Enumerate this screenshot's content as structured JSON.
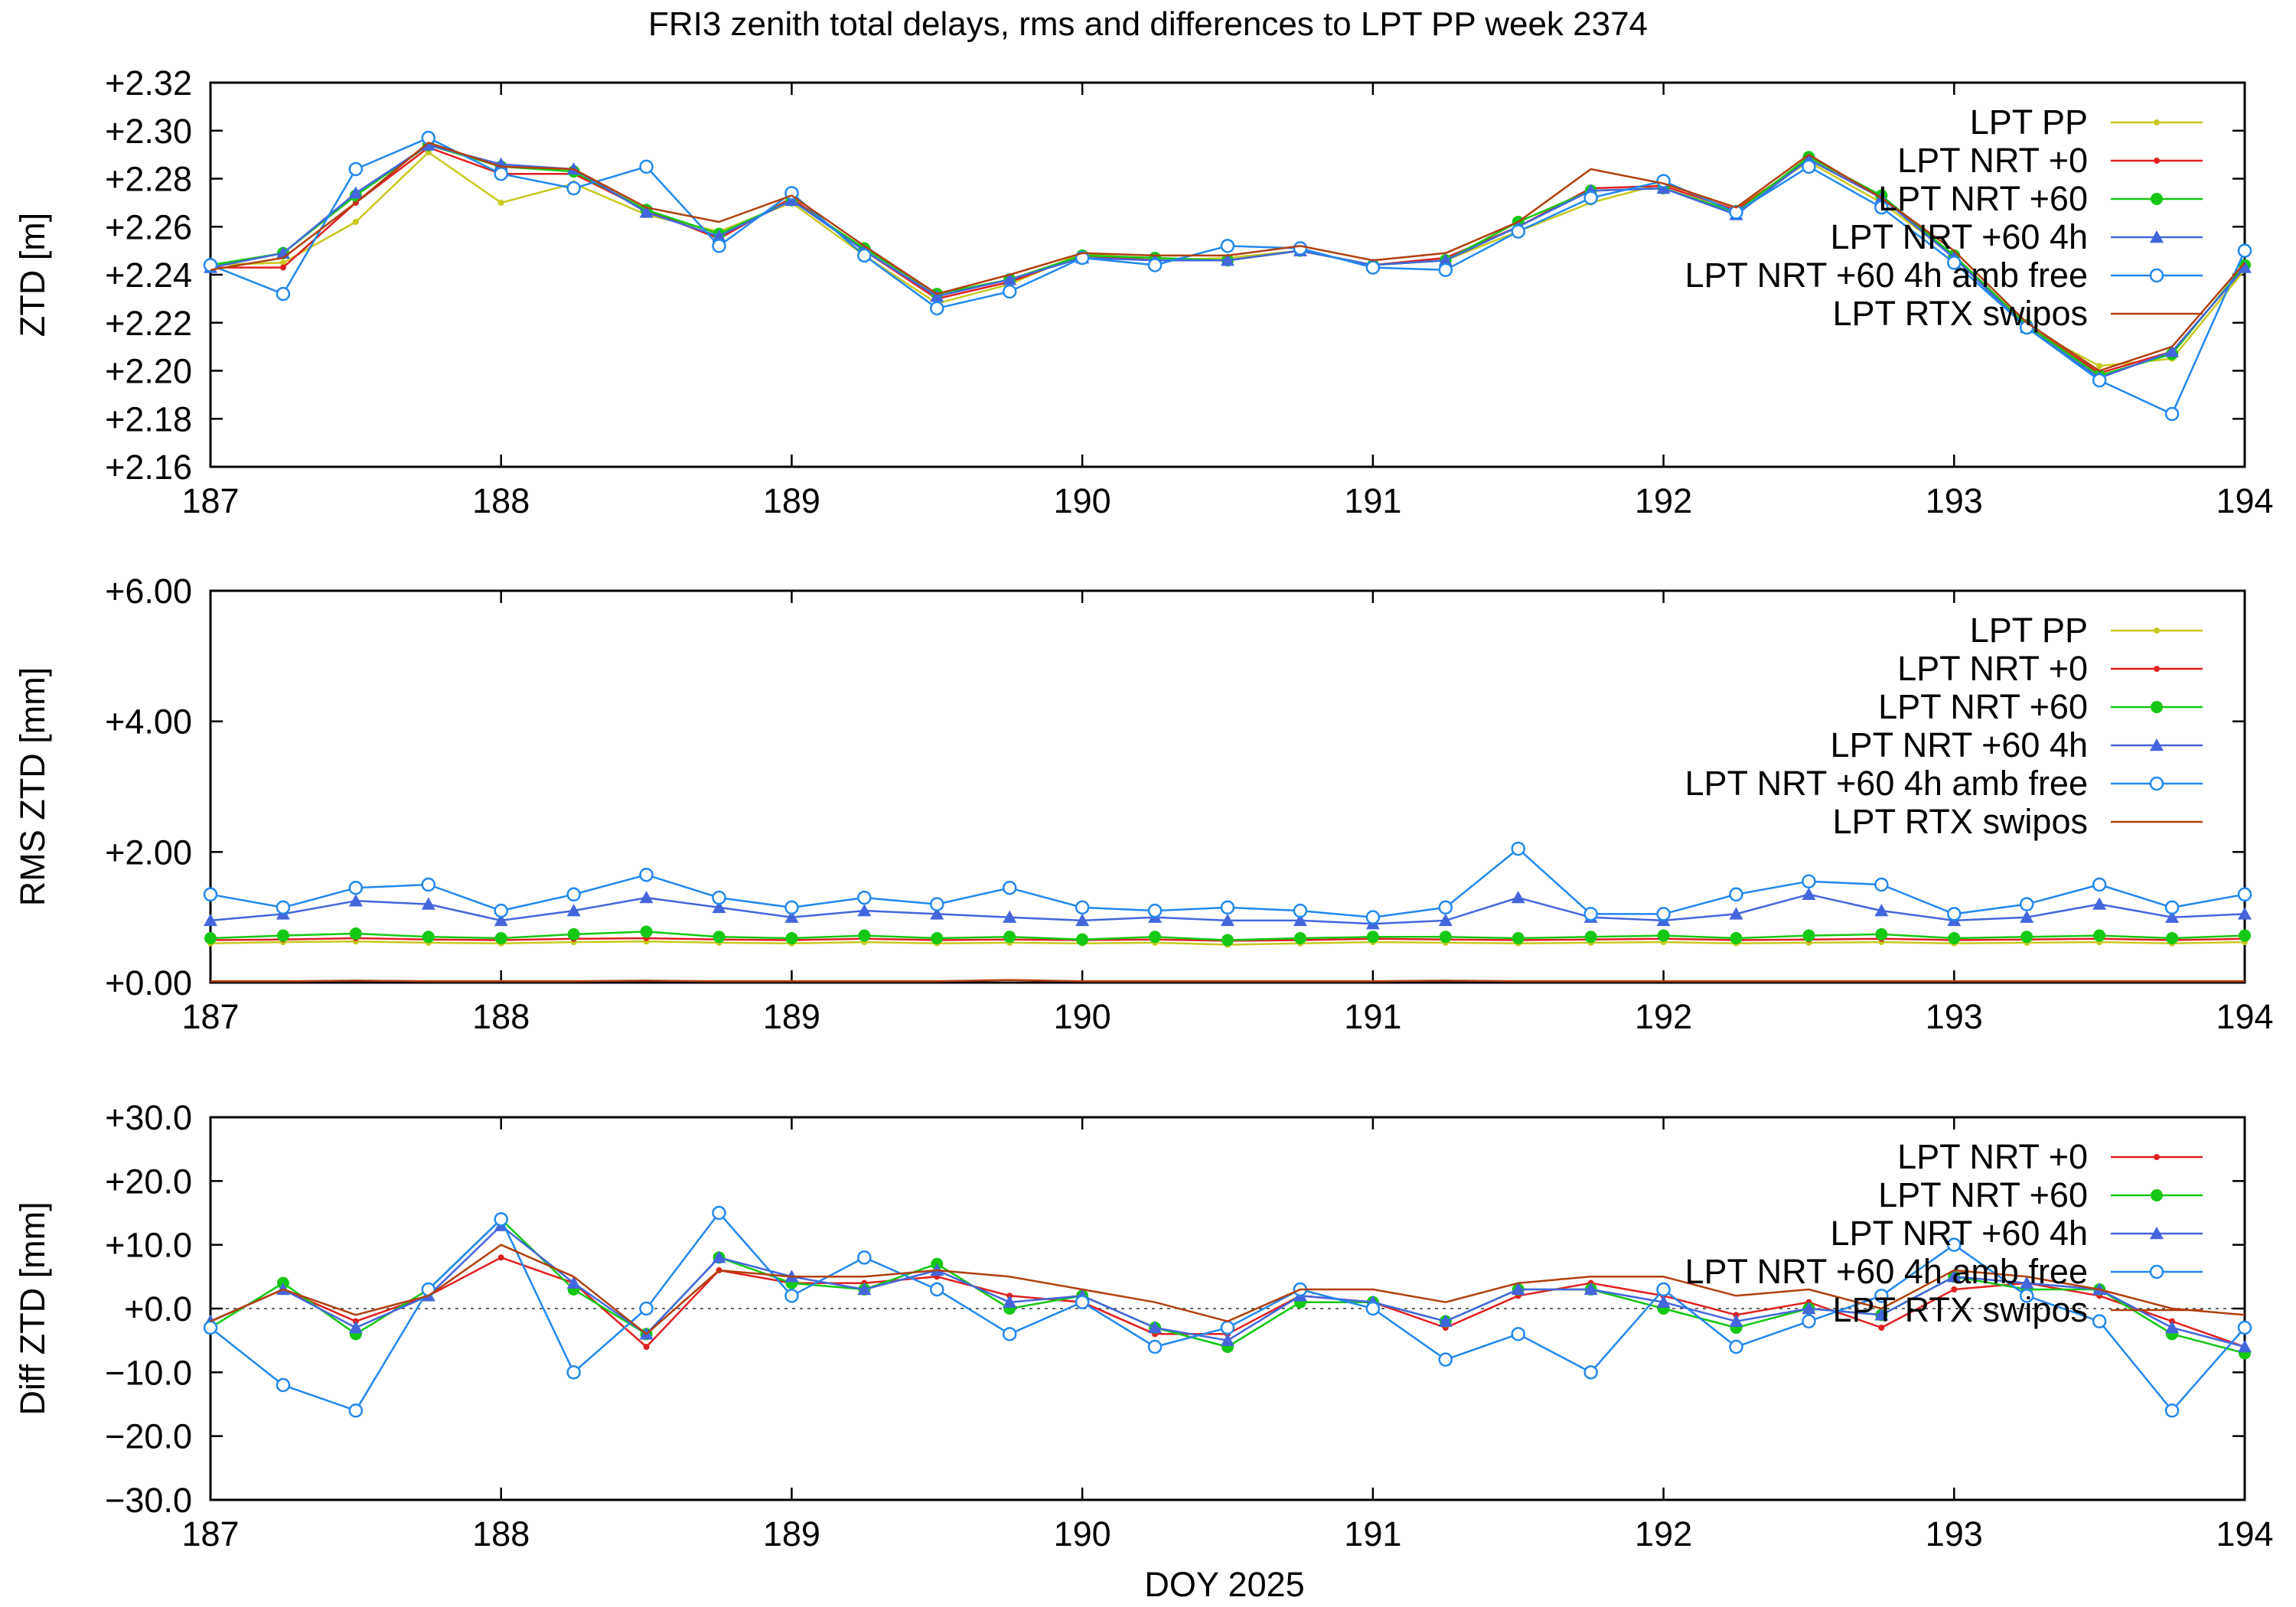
{
  "title": "FRI3 zenith total delays, rms and differences to LPT PP week 2374",
  "xlabel": "DOY 2025",
  "colors": {
    "LPT PP": "#c8c81e",
    "LPT NRT +0": "#e02020",
    "LPT NRT +60": "#14c814",
    "LPT NRT +60 4h": "#4466dd",
    "LPT NRT +60 4h amb free": "#2288ee",
    "LPT RTX swipos": "#b0400e"
  },
  "chart_data": [
    {
      "type": "line",
      "ylabel": "ZTD [m]",
      "xlim": [
        187,
        194
      ],
      "ylim": [
        2.16,
        2.32
      ],
      "x_ticks": [
        "187",
        "188",
        "189",
        "190",
        "191",
        "192",
        "193",
        "194"
      ],
      "y_ticks": [
        "+2.16",
        "+2.18",
        "+2.20",
        "+2.22",
        "+2.24",
        "+2.26",
        "+2.28",
        "+2.30",
        "+2.32"
      ],
      "grid": false,
      "legend_position": "top-right",
      "x": [
        187.0,
        187.25,
        187.5,
        187.75,
        188.0,
        188.25,
        188.5,
        188.75,
        189.0,
        189.25,
        189.5,
        189.75,
        190.0,
        190.25,
        190.5,
        190.75,
        191.0,
        191.25,
        191.5,
        191.75,
        192.0,
        192.25,
        192.5,
        192.75,
        193.0,
        193.25,
        193.5,
        193.75,
        194.0
      ],
      "series": [
        {
          "name": "LPT PP",
          "marker": "dot",
          "values": [
            2.244,
            2.245,
            2.262,
            2.291,
            2.27,
            2.278,
            2.265,
            2.258,
            2.27,
            2.248,
            2.228,
            2.236,
            2.249,
            2.246,
            2.247,
            2.25,
            2.244,
            2.246,
            2.258,
            2.27,
            2.278,
            2.268,
            2.287,
            2.27,
            2.248,
            2.218,
            2.202,
            2.205,
            2.242
          ]
        },
        {
          "name": "LPT NRT +0",
          "marker": "dot",
          "values": [
            2.243,
            2.243,
            2.27,
            2.293,
            2.282,
            2.282,
            2.267,
            2.255,
            2.272,
            2.25,
            2.23,
            2.237,
            2.248,
            2.246,
            2.246,
            2.25,
            2.244,
            2.247,
            2.26,
            2.276,
            2.277,
            2.267,
            2.288,
            2.272,
            2.248,
            2.219,
            2.199,
            2.208,
            2.243
          ]
        },
        {
          "name": "LPT NRT +60",
          "marker": "filled-circle",
          "values": [
            2.244,
            2.249,
            2.273,
            2.294,
            2.285,
            2.283,
            2.267,
            2.257,
            2.271,
            2.251,
            2.232,
            2.238,
            2.248,
            2.247,
            2.246,
            2.25,
            2.244,
            2.246,
            2.262,
            2.275,
            2.276,
            2.266,
            2.289,
            2.273,
            2.248,
            2.219,
            2.198,
            2.207,
            2.244
          ]
        },
        {
          "name": "LPT NRT +60 4h",
          "marker": "triangle",
          "values": [
            2.243,
            2.249,
            2.274,
            2.294,
            2.286,
            2.284,
            2.266,
            2.256,
            2.271,
            2.25,
            2.231,
            2.238,
            2.247,
            2.246,
            2.246,
            2.25,
            2.244,
            2.246,
            2.26,
            2.275,
            2.276,
            2.265,
            2.288,
            2.272,
            2.247,
            2.218,
            2.197,
            2.208,
            2.243
          ]
        },
        {
          "name": "LPT NRT +60 4h amb free",
          "marker": "open-circle",
          "values": [
            2.244,
            2.232,
            2.284,
            2.297,
            2.282,
            2.276,
            2.285,
            2.252,
            2.274,
            2.248,
            2.226,
            2.233,
            2.247,
            2.244,
            2.252,
            2.251,
            2.243,
            2.242,
            2.258,
            2.272,
            2.279,
            2.266,
            2.285,
            2.268,
            2.245,
            2.218,
            2.196,
            2.182,
            2.25
          ]
        },
        {
          "name": "LPT RTX swipos",
          "marker": "line",
          "values": [
            2.242,
            2.247,
            2.27,
            2.295,
            2.285,
            2.284,
            2.268,
            2.262,
            2.273,
            2.252,
            2.232,
            2.24,
            2.249,
            2.248,
            2.248,
            2.252,
            2.246,
            2.249,
            2.262,
            2.284,
            2.278,
            2.268,
            2.29,
            2.272,
            2.25,
            2.22,
            2.2,
            2.21,
            2.245
          ]
        }
      ]
    },
    {
      "type": "line",
      "ylabel": "RMS ZTD [mm]",
      "xlim": [
        187,
        194
      ],
      "ylim": [
        0,
        6
      ],
      "x_ticks": [
        "187",
        "188",
        "189",
        "190",
        "191",
        "192",
        "193",
        "194"
      ],
      "y_ticks": [
        "+0.00",
        "+2.00",
        "+4.00",
        "+6.00"
      ],
      "grid": false,
      "legend_position": "top-right",
      "x": [
        187.0,
        187.25,
        187.5,
        187.75,
        188.0,
        188.25,
        188.5,
        188.75,
        189.0,
        189.25,
        189.5,
        189.75,
        190.0,
        190.25,
        190.5,
        190.75,
        191.0,
        191.25,
        191.5,
        191.75,
        192.0,
        192.25,
        192.5,
        192.75,
        193.0,
        193.25,
        193.5,
        193.75,
        194.0
      ],
      "series": [
        {
          "name": "LPT PP",
          "marker": "dot",
          "values": [
            0.6,
            0.62,
            0.63,
            0.61,
            0.6,
            0.62,
            0.63,
            0.61,
            0.6,
            0.62,
            0.6,
            0.61,
            0.6,
            0.61,
            0.58,
            0.6,
            0.62,
            0.61,
            0.6,
            0.61,
            0.62,
            0.6,
            0.61,
            0.62,
            0.6,
            0.61,
            0.62,
            0.6,
            0.62
          ]
        },
        {
          "name": "LPT NRT +0",
          "marker": "dot",
          "values": [
            0.65,
            0.66,
            0.68,
            0.66,
            0.65,
            0.67,
            0.68,
            0.66,
            0.65,
            0.67,
            0.65,
            0.66,
            0.65,
            0.66,
            0.64,
            0.65,
            0.67,
            0.66,
            0.65,
            0.66,
            0.67,
            0.65,
            0.66,
            0.67,
            0.65,
            0.66,
            0.67,
            0.65,
            0.67
          ]
        },
        {
          "name": "LPT NRT +60",
          "marker": "filled-circle",
          "values": [
            0.68,
            0.72,
            0.75,
            0.7,
            0.68,
            0.74,
            0.78,
            0.7,
            0.68,
            0.72,
            0.68,
            0.7,
            0.66,
            0.7,
            0.65,
            0.68,
            0.7,
            0.7,
            0.68,
            0.7,
            0.72,
            0.68,
            0.72,
            0.74,
            0.68,
            0.7,
            0.72,
            0.68,
            0.72
          ]
        },
        {
          "name": "LPT NRT +60 4h",
          "marker": "triangle",
          "values": [
            0.95,
            1.05,
            1.25,
            1.2,
            0.95,
            1.1,
            1.3,
            1.15,
            1.0,
            1.1,
            1.05,
            1.0,
            0.95,
            1.0,
            0.95,
            0.95,
            0.9,
            0.95,
            1.3,
            1.0,
            0.95,
            1.05,
            1.35,
            1.1,
            0.95,
            1.0,
            1.2,
            1.0,
            1.05
          ]
        },
        {
          "name": "LPT NRT +60 4h amb free",
          "marker": "open-circle",
          "values": [
            1.35,
            1.15,
            1.45,
            1.5,
            1.1,
            1.35,
            1.65,
            1.3,
            1.15,
            1.3,
            1.2,
            1.45,
            1.15,
            1.1,
            1.15,
            1.1,
            1.0,
            1.15,
            2.05,
            1.05,
            1.05,
            1.35,
            1.55,
            1.5,
            1.05,
            1.2,
            1.5,
            1.15,
            1.35
          ]
        },
        {
          "name": "LPT RTX swipos",
          "marker": "line",
          "values": [
            0.02,
            0.02,
            0.03,
            0.02,
            0.02,
            0.02,
            0.03,
            0.02,
            0.02,
            0.02,
            0.02,
            0.04,
            0.02,
            0.02,
            0.02,
            0.02,
            0.02,
            0.03,
            0.02,
            0.02,
            0.02,
            0.02,
            0.02,
            0.02,
            0.02,
            0.02,
            0.02,
            0.02,
            0.02
          ]
        }
      ]
    },
    {
      "type": "line",
      "ylabel": "Diff ZTD [mm]",
      "xlim": [
        187,
        194
      ],
      "ylim": [
        -30,
        30
      ],
      "x_ticks": [
        "187",
        "188",
        "189",
        "190",
        "191",
        "192",
        "193",
        "194"
      ],
      "y_ticks": [
        "−30.0",
        "−20.0",
        "−10.0",
        "+0.0",
        "+10.0",
        "+20.0",
        "+30.0"
      ],
      "grid": false,
      "zero_line": true,
      "legend_position": "top-right",
      "x": [
        187.0,
        187.25,
        187.5,
        187.75,
        188.0,
        188.25,
        188.5,
        188.75,
        189.0,
        189.25,
        189.5,
        189.75,
        190.0,
        190.25,
        190.5,
        190.75,
        191.0,
        191.25,
        191.5,
        191.75,
        192.0,
        192.25,
        192.5,
        192.75,
        193.0,
        193.25,
        193.5,
        193.75,
        194.0
      ],
      "series": [
        {
          "name": "LPT NRT +0",
          "marker": "dot",
          "values": [
            -2,
            3,
            -2,
            2,
            8,
            4,
            -6,
            6,
            4,
            4,
            5,
            2,
            1,
            -4,
            -4,
            2,
            1,
            -3,
            2,
            4,
            2,
            -1,
            1,
            -3,
            3,
            4,
            2,
            -2,
            -6
          ]
        },
        {
          "name": "LPT NRT +60",
          "marker": "filled-circle",
          "values": [
            -3,
            4,
            -4,
            3,
            14,
            3,
            -4,
            8,
            4,
            3,
            7,
            0,
            2,
            -3,
            -6,
            1,
            1,
            -2,
            3,
            3,
            0,
            -3,
            0,
            -1,
            5,
            3,
            3,
            -4,
            -7
          ]
        },
        {
          "name": "LPT NRT +60 4h",
          "marker": "triangle",
          "values": [
            -2,
            3,
            -3,
            2,
            13,
            4,
            -4,
            8,
            5,
            3,
            6,
            1,
            2,
            -3,
            -5,
            2,
            1,
            -2,
            3,
            3,
            1,
            -2,
            0,
            -1,
            5,
            4,
            3,
            -3,
            -6
          ]
        },
        {
          "name": "LPT NRT +60 4h amb free",
          "marker": "open-circle",
          "values": [
            -3,
            -12,
            -16,
            3,
            14,
            -10,
            0,
            15,
            2,
            8,
            3,
            -4,
            1,
            -6,
            -3,
            3,
            0,
            -8,
            -4,
            -10,
            3,
            -6,
            -2,
            2,
            10,
            2,
            -2,
            -16,
            -3
          ]
        },
        {
          "name": "LPT RTX swipos",
          "marker": "line",
          "values": [
            -2,
            3,
            -1,
            2,
            10,
            5,
            -4,
            6,
            5,
            5,
            6,
            5,
            3,
            1,
            -2,
            3,
            3,
            1,
            4,
            5,
            5,
            2,
            3,
            0,
            6,
            5,
            3,
            0,
            -1
          ]
        }
      ]
    }
  ]
}
